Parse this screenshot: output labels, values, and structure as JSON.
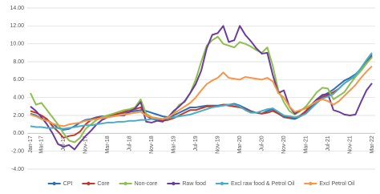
{
  "chart_data": {
    "type": "line",
    "categories": [
      "Jan-17",
      null,
      "Mar-17",
      null,
      null,
      null,
      "Jul-17",
      null,
      null,
      null,
      "Nov-17",
      null,
      null,
      null,
      "Mar-18",
      null,
      null,
      null,
      "Jul-18",
      null,
      null,
      null,
      "Nov-18",
      null,
      null,
      null,
      "Mar-19",
      null,
      null,
      null,
      "Jul-19",
      null,
      null,
      null,
      "Nov-19",
      null,
      null,
      null,
      "Mar-20",
      null,
      null,
      null,
      "Jul-20",
      null,
      null,
      null,
      "Nov-20",
      null,
      null,
      null,
      "Mar-21",
      null,
      null,
      null,
      "Jul-21",
      null,
      null,
      null,
      "Nov-21",
      null,
      null,
      null,
      "Mar-22"
    ],
    "ylim": [
      -4,
      14
    ],
    "yticks": [
      {
        "value": -4,
        "label": "-4.00"
      },
      {
        "value": -2,
        "label": "-2.00"
      },
      {
        "value": 0,
        "label": "0.00"
      },
      {
        "value": 2,
        "label": "2.00"
      },
      {
        "value": 4,
        "label": "4.00"
      },
      {
        "value": 6,
        "label": "6.00"
      },
      {
        "value": 8,
        "label": "8.00"
      },
      {
        "value": 10,
        "label": "10.00"
      },
      {
        "value": 12,
        "label": "12.00"
      },
      {
        "value": 14,
        "label": "14.00"
      }
    ],
    "grid": true,
    "legend": "bottom",
    "series": [
      {
        "name": "CPI",
        "color": "#2e6fb7",
        "values": [
          2.2,
          2.0,
          1.6,
          1.5,
          1.1,
          0.6,
          0.4,
          0.5,
          0.8,
          1.2,
          1.5,
          1.6,
          1.8,
          1.9,
          1.9,
          2.1,
          2.2,
          2.3,
          2.4,
          2.5,
          2.6,
          2.5,
          2.3,
          2.1,
          1.9,
          1.8,
          2.0,
          2.3,
          2.6,
          2.9,
          2.9,
          3.0,
          3.1,
          3.1,
          3.1,
          3.2,
          3.2,
          3.3,
          3.1,
          2.8,
          2.5,
          2.3,
          2.2,
          2.5,
          2.7,
          2.2,
          1.8,
          1.7,
          1.6,
          1.9,
          2.4,
          3.0,
          3.6,
          4.2,
          4.5,
          4.9,
          5.4,
          5.9,
          6.2,
          6.6,
          7.2,
          8.0,
          8.8
        ]
      },
      {
        "name": "Core",
        "color": "#c0392b",
        "values": [
          2.5,
          2.3,
          2.0,
          1.6,
          0.8,
          0.2,
          -0.5,
          -0.3,
          -0.2,
          0.2,
          1.0,
          1.5,
          1.7,
          1.8,
          2.0,
          2.1,
          2.2,
          2.4,
          2.6,
          2.7,
          2.9,
          2.0,
          1.6,
          1.5,
          1.4,
          1.5,
          1.7,
          2.0,
          2.3,
          2.6,
          2.6,
          2.8,
          3.0,
          3.0,
          3.0,
          3.2,
          3.1,
          3.0,
          2.9,
          2.7,
          2.4,
          2.3,
          2.2,
          2.3,
          2.5,
          2.2,
          1.9,
          1.8,
          1.7,
          2.0,
          2.5,
          3.2,
          3.6,
          4.0,
          4.3,
          4.6,
          5.0,
          5.6,
          6.0,
          6.4,
          7.0,
          7.8,
          8.6
        ]
      },
      {
        "name": "Non-core",
        "color": "#8dc04f",
        "values": [
          4.5,
          3.2,
          3.4,
          2.6,
          1.8,
          1.0,
          0.0,
          -0.8,
          -1.0,
          -0.5,
          0.5,
          1.0,
          1.5,
          1.8,
          2.0,
          2.2,
          2.4,
          2.6,
          2.7,
          2.9,
          3.8,
          2.2,
          1.8,
          1.7,
          1.6,
          1.8,
          2.3,
          3.2,
          3.5,
          4.5,
          6.0,
          8.0,
          9.8,
          10.4,
          10.8,
          10.0,
          9.8,
          9.6,
          10.2,
          10.0,
          9.7,
          9.3,
          9.0,
          9.6,
          7.5,
          4.8,
          3.5,
          2.5,
          2.1,
          2.5,
          3.0,
          3.8,
          4.6,
          5.1,
          5.0,
          3.8,
          4.2,
          4.6,
          5.5,
          6.3,
          7.0,
          7.8,
          8.5
        ]
      },
      {
        "name": "Raw food",
        "color": "#6a3d9a",
        "values": [
          3.0,
          2.5,
          1.8,
          1.0,
          0.0,
          -1.2,
          -1.5,
          -1.3,
          -1.8,
          -1.0,
          -0.3,
          0.3,
          1.0,
          1.5,
          1.8,
          1.9,
          2.0,
          2.0,
          2.4,
          2.8,
          3.5,
          1.3,
          1.2,
          1.4,
          1.3,
          1.8,
          2.5,
          3.0,
          3.6,
          4.5,
          5.5,
          7.0,
          9.5,
          11.0,
          11.2,
          12.0,
          10.2,
          10.4,
          12.0,
          11.0,
          10.3,
          9.5,
          8.9,
          9.0,
          6.5,
          4.5,
          4.8,
          3.0,
          2.2,
          2.6,
          2.8,
          3.2,
          3.8,
          4.3,
          4.4,
          2.6,
          2.4,
          2.1,
          2.0,
          2.1,
          3.5,
          4.8,
          5.6
        ]
      },
      {
        "name": "Excl raw food & Petrol Oil",
        "color": "#4bacc6",
        "values": [
          0.8,
          0.7,
          0.7,
          0.6,
          0.6,
          0.6,
          0.5,
          0.6,
          0.7,
          0.8,
          0.9,
          0.9,
          1.0,
          1.1,
          1.2,
          1.2,
          1.3,
          1.3,
          1.4,
          1.4,
          1.5,
          1.5,
          1.6,
          1.6,
          1.6,
          1.7,
          1.8,
          1.9,
          2.0,
          2.1,
          2.3,
          2.5,
          2.7,
          2.9,
          3.0,
          3.1,
          3.2,
          3.2,
          3.0,
          2.6,
          2.3,
          2.3,
          2.5,
          2.7,
          2.8,
          2.4,
          2.0,
          1.9,
          1.8,
          1.9,
          2.2,
          2.8,
          3.4,
          3.9,
          4.1,
          4.4,
          5.0,
          5.6,
          6.0,
          6.5,
          7.3,
          8.2,
          9.0
        ]
      },
      {
        "name": "Excl Petrol Oil",
        "color": "#f79646",
        "values": [
          2.1,
          1.9,
          1.6,
          1.4,
          1.1,
          0.9,
          0.8,
          1.0,
          1.1,
          1.2,
          1.4,
          1.5,
          1.6,
          1.7,
          1.8,
          1.9,
          2.0,
          2.1,
          2.2,
          2.3,
          2.4,
          2.0,
          1.8,
          1.7,
          1.6,
          1.8,
          2.2,
          2.6,
          3.0,
          3.4,
          4.0,
          4.8,
          5.5,
          5.9,
          6.2,
          6.8,
          6.2,
          6.1,
          6.0,
          6.3,
          6.2,
          6.1,
          6.0,
          6.2,
          5.8,
          4.5,
          4.0,
          3.0,
          2.4,
          2.6,
          2.8,
          3.2,
          3.6,
          3.8,
          3.6,
          3.2,
          3.6,
          4.2,
          4.8,
          5.4,
          6.2,
          6.9,
          7.5
        ]
      }
    ]
  }
}
